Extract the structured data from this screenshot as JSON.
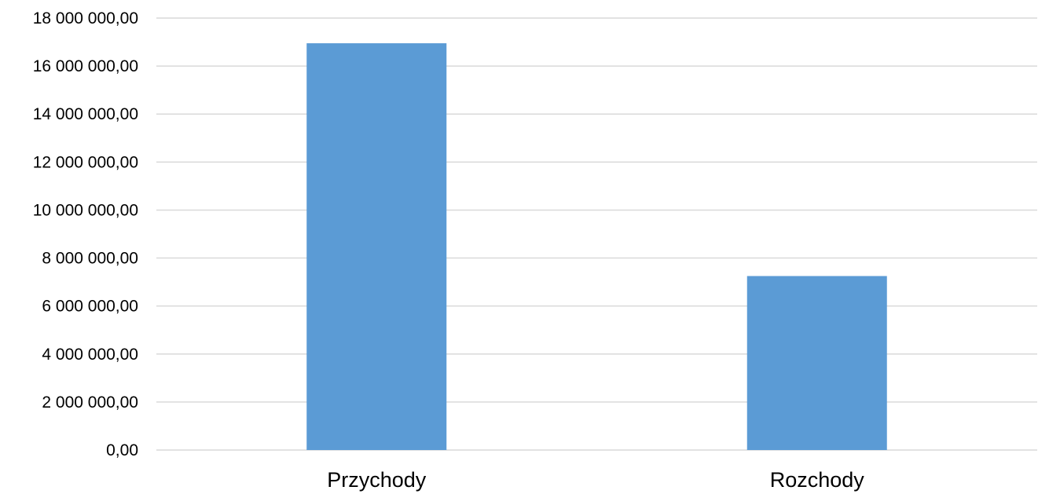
{
  "chart_data": {
    "type": "bar",
    "categories": [
      "Przychody",
      "Rozchody"
    ],
    "series": [
      {
        "values": [
          16950000,
          7250000
        ]
      }
    ],
    "title": "",
    "xlabel": "",
    "ylabel": "",
    "ylim": [
      0,
      18000000
    ],
    "ytick_values": [
      0,
      2000000,
      4000000,
      6000000,
      8000000,
      10000000,
      12000000,
      14000000,
      16000000,
      18000000
    ],
    "ytick_labels": [
      "0,00",
      "2 000 000,00",
      "4 000 000,00",
      "6 000 000,00",
      "8 000 000,00",
      "10 000 000,00",
      "12 000 000,00",
      "14 000 000,00",
      "16 000 000,00",
      "18 000 000,00"
    ],
    "grid": true,
    "legend": "none",
    "bar_color": "#5b9bd5",
    "grid_color": "#d9d9d9"
  }
}
